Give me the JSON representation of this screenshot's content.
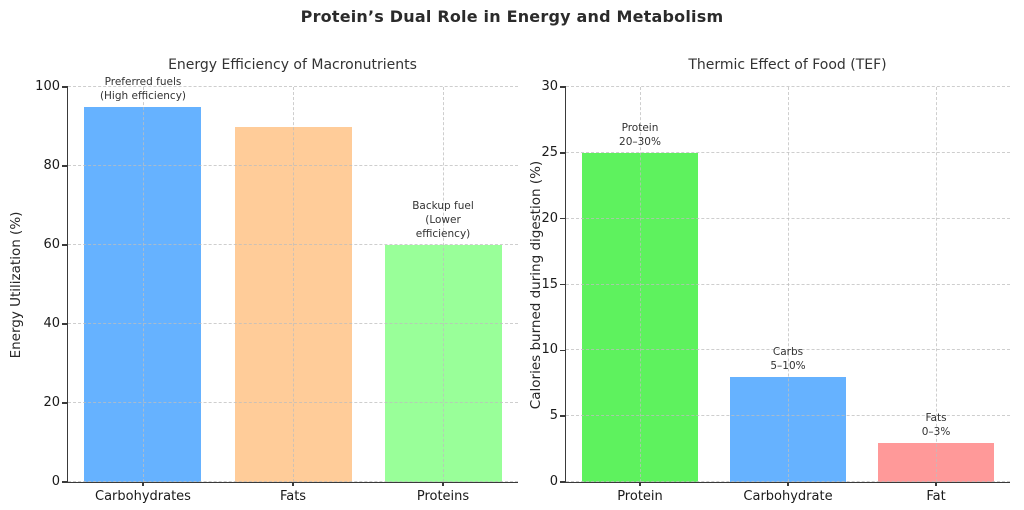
{
  "header": {
    "title": "Protein’s Dual Role in Energy and Metabolism"
  },
  "colors": {
    "blue": "#66b2ff",
    "peach": "#ffcc99",
    "light_green": "#99ff99",
    "bright_green": "#5ef25e",
    "pink": "#ff9999",
    "grid": "#d9d9d9",
    "spine": "#3a3a3a",
    "text": "#1a1a1a"
  },
  "chart_data": [
    {
      "type": "bar",
      "title": "Energy Efficiency of Macronutrients",
      "xlabel": "",
      "ylabel": "Energy Utilization (%)",
      "categories": [
        "Carbohydrates",
        "Fats",
        "Proteins"
      ],
      "values": [
        95,
        90,
        60
      ],
      "bar_colors": [
        "#66b2ff",
        "#ffcc99",
        "#99ff99"
      ],
      "annotations": [
        [
          "Preferred fuels",
          "(High efficiency)"
        ],
        null,
        [
          "Backup fuel",
          "(Lower efficiency)"
        ]
      ],
      "ylim": [
        0,
        100
      ],
      "yticks": [
        0,
        20,
        40,
        60,
        80,
        100
      ],
      "grid": "dashed, both axes, drawn over bars",
      "legend": "none"
    },
    {
      "type": "bar",
      "title": "Thermic Effect of Food (TEF)",
      "xlabel": "",
      "ylabel": "Calories burned during digestion (%)",
      "categories": [
        "Protein",
        "Carbohydrate",
        "Fat"
      ],
      "values": [
        25,
        8,
        3
      ],
      "bar_colors": [
        "#5ef25e",
        "#66b2ff",
        "#ff9999"
      ],
      "annotations": [
        [
          "Protein",
          "20–30%"
        ],
        [
          "Carbs",
          "5–10%"
        ],
        [
          "Fats",
          "0–3%"
        ]
      ],
      "ylim": [
        0,
        30
      ],
      "yticks": [
        0,
        5,
        10,
        15,
        20,
        25,
        30
      ],
      "grid": "dashed, both axes, drawn over bars",
      "legend": "none"
    }
  ]
}
